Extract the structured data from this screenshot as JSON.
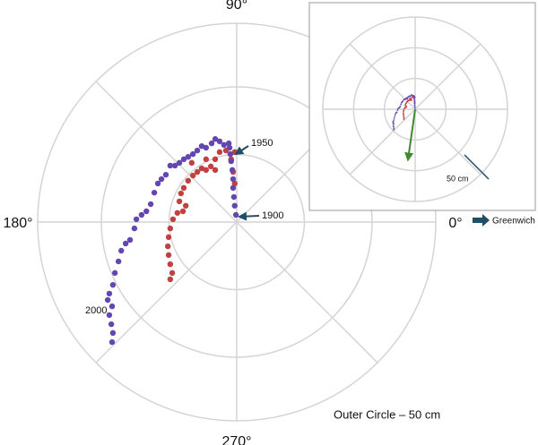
{
  "chart_data": {
    "type": "polar-scatter",
    "rlim": [
      0,
      50
    ],
    "rticks": [
      17,
      34,
      50
    ],
    "thetagrid": [
      0,
      45,
      90,
      135,
      180,
      225,
      270,
      315
    ],
    "thetaticks": [
      {
        "value": 0,
        "label": "0°"
      },
      {
        "value": 90,
        "label": "90°"
      },
      {
        "value": 180,
        "label": "180°"
      },
      {
        "value": 270,
        "label": "270°"
      }
    ],
    "series": [
      {
        "color": "#c0413f",
        "x": [
          -0.5,
          -1.4,
          -0.9,
          -0.5,
          -2.7,
          -4.3,
          -5.4,
          -6.5,
          -7.7,
          -5.4,
          -8.8,
          -9.9,
          -11.0,
          -12.2,
          -13.3,
          -14.0,
          -14.4,
          -12.8,
          -13.5,
          -14.9,
          -16.0,
          -16.7,
          -17.1,
          -17.3,
          -17.1,
          -16.7,
          -16.2,
          -16.7,
          -11.3,
          -7.7
        ],
        "y": [
          17.6,
          15.8,
          12.6,
          9.7,
          18.0,
          17.6,
          15.8,
          14.0,
          13.1,
          13.1,
          13.5,
          12.6,
          11.7,
          10.4,
          8.6,
          7.2,
          5.2,
          4.1,
          2.7,
          2.3,
          0.7,
          -1.6,
          -3.8,
          -6.1,
          -8.3,
          -10.6,
          -12.8,
          -14.4,
          14.9,
          15.8
        ]
      },
      {
        "color": "#6346b0",
        "x": [
          -0.2,
          -0.5,
          -0.7,
          -0.9,
          -0.9,
          -1.1,
          -1.4,
          -1.6,
          -1.8,
          -2.0,
          -3.2,
          -4.3,
          -5.4,
          -6.3,
          -7.7,
          -8.8,
          -9.9,
          -11.0,
          -12.2,
          -13.3,
          -14.4,
          -15.5,
          -16.7,
          -17.8,
          -18.9,
          -19.8,
          -20.7,
          -21.6,
          -22.7,
          -23.9,
          -25.2,
          -25.7,
          -26.8,
          -27.9,
          -29.0,
          -29.7,
          -30.6,
          -31.1,
          -32.0,
          -32.4,
          -31.3,
          -32.0,
          -31.5,
          -31.1,
          -31.3
        ],
        "y": [
          1.8,
          4.1,
          6.3,
          8.6,
          10.8,
          13.1,
          15.3,
          17.1,
          18.7,
          19.8,
          19.4,
          20.3,
          20.9,
          19.8,
          18.7,
          19.1,
          18.0,
          17.1,
          16.4,
          15.8,
          14.9,
          14.2,
          14.2,
          11.9,
          10.8,
          9.7,
          7.4,
          4.5,
          2.7,
          1.8,
          0.7,
          -1.6,
          -4.5,
          -5.4,
          -7.2,
          -9.9,
          -12.8,
          -15.8,
          -18.0,
          -19.6,
          -21.2,
          -23.4,
          -25.7,
          -27.9,
          -30.2
        ]
      }
    ],
    "annotations": [
      "1900",
      "1950",
      "2000"
    ],
    "note": "Outer Circle – 50 cm",
    "reference_label": "Greenwich",
    "inset": {
      "rlim": [
        0,
        135
      ],
      "rticks": [
        45,
        90,
        135
      ],
      "arrow": {
        "x": -10.5,
        "y": -74,
        "color": "#3f8a2c"
      },
      "scale_bar": {
        "length": 50,
        "label": "50 cm"
      }
    }
  }
}
